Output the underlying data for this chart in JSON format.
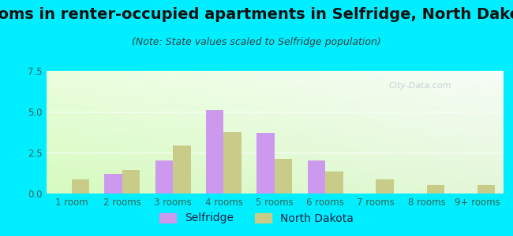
{
  "title": "Rooms in renter-occupied apartments in Selfridge, North Dakota",
  "subtitle": "(Note: State values scaled to Selfridge population)",
  "categories": [
    "1 room",
    "2 rooms",
    "3 rooms",
    "4 rooms",
    "5 rooms",
    "6 rooms",
    "7 rooms",
    "8 rooms",
    "9+ rooms"
  ],
  "selfridge_values": [
    0,
    1.2,
    2.0,
    5.1,
    3.7,
    2.0,
    0,
    0,
    0
  ],
  "nd_values": [
    0.85,
    1.45,
    2.95,
    3.75,
    2.1,
    1.35,
    0.85,
    0.55,
    0.55
  ],
  "selfridge_color": "#cc99ee",
  "nd_color": "#c8cc88",
  "ylim": [
    0,
    7.5
  ],
  "yticks": [
    0,
    2.5,
    5,
    7.5
  ],
  "background_outer": "#00eeff",
  "bar_width": 0.35,
  "title_fontsize": 14,
  "subtitle_fontsize": 9,
  "tick_fontsize": 8.5,
  "legend_fontsize": 10,
  "tick_color": "#336655",
  "title_color": "#111111"
}
